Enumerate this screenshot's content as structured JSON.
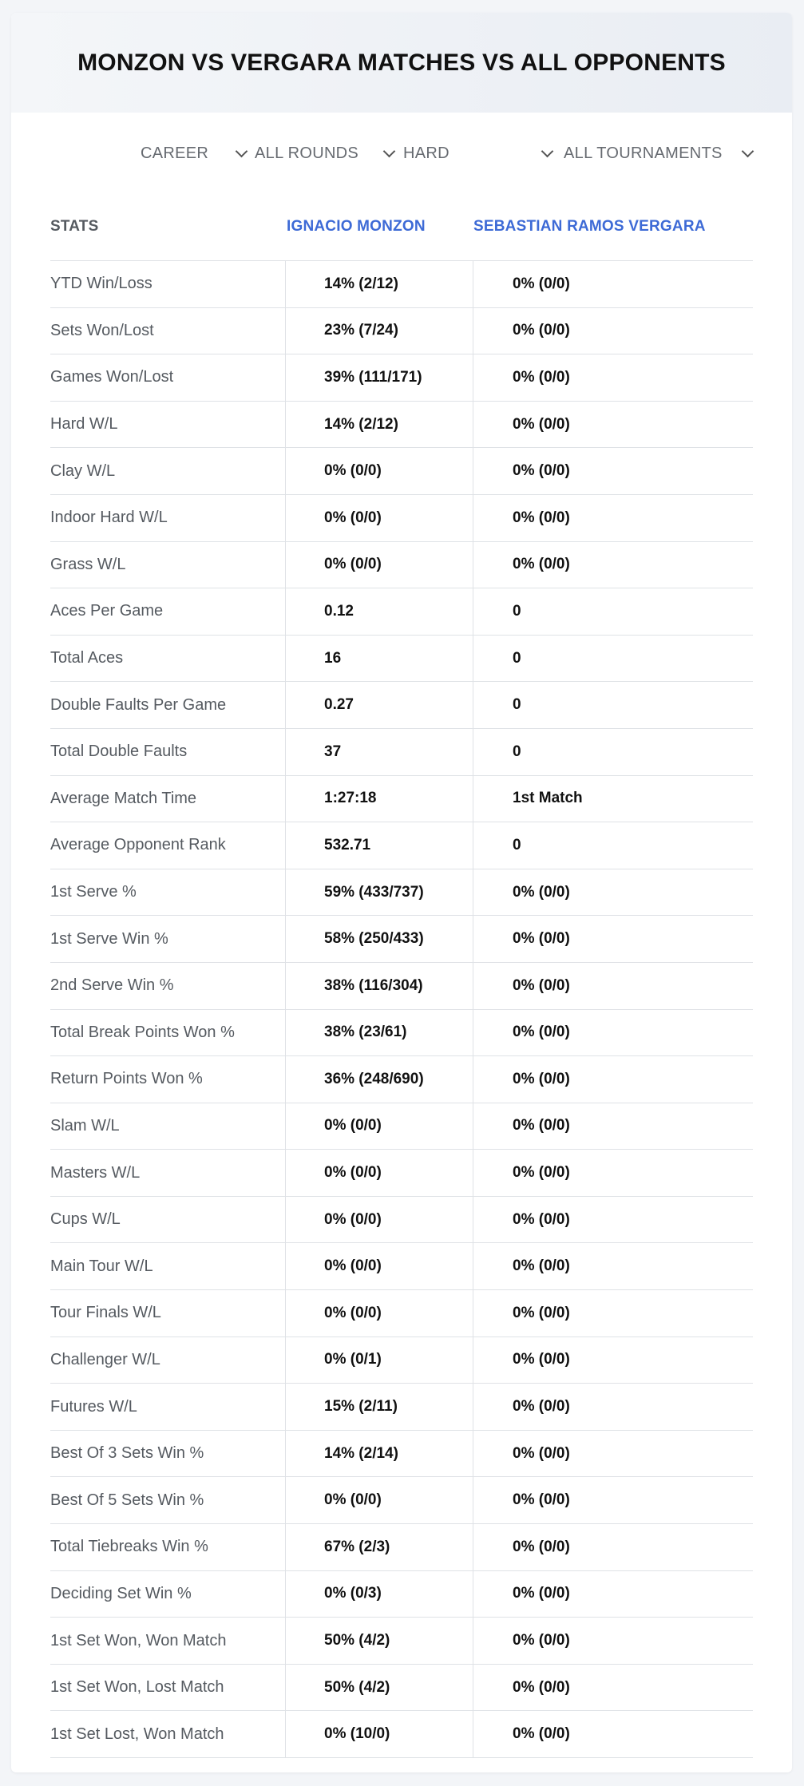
{
  "header": {
    "title": "MONZON VS VERGARA MATCHES VS ALL OPPONENTS"
  },
  "filters": {
    "period": "CAREER",
    "rounds": "ALL ROUNDS",
    "surface": "HARD",
    "tournaments": "ALL TOURNAMENTS"
  },
  "table": {
    "columns": {
      "stats": "STATS",
      "player1": "IGNACIO MONZON",
      "player2": "SEBASTIAN RAMOS VERGARA"
    },
    "rows": [
      {
        "label": "YTD Win/Loss",
        "p1": "14% (2/12)",
        "p2": "0% (0/0)"
      },
      {
        "label": "Sets Won/Lost",
        "p1": "23% (7/24)",
        "p2": "0% (0/0)"
      },
      {
        "label": "Games Won/Lost",
        "p1": "39% (111/171)",
        "p2": "0% (0/0)"
      },
      {
        "label": "Hard W/L",
        "p1": "14% (2/12)",
        "p2": "0% (0/0)"
      },
      {
        "label": "Clay W/L",
        "p1": "0% (0/0)",
        "p2": "0% (0/0)"
      },
      {
        "label": "Indoor Hard W/L",
        "p1": "0% (0/0)",
        "p2": "0% (0/0)"
      },
      {
        "label": "Grass W/L",
        "p1": "0% (0/0)",
        "p2": "0% (0/0)"
      },
      {
        "label": "Aces Per Game",
        "p1": "0.12",
        "p2": "0"
      },
      {
        "label": "Total Aces",
        "p1": "16",
        "p2": "0"
      },
      {
        "label": "Double Faults Per Game",
        "p1": "0.27",
        "p2": "0"
      },
      {
        "label": "Total Double Faults",
        "p1": "37",
        "p2": "0"
      },
      {
        "label": "Average Match Time",
        "p1": "1:27:18",
        "p2": "1st Match"
      },
      {
        "label": "Average Opponent Rank",
        "p1": "532.71",
        "p2": "0"
      },
      {
        "label": "1st Serve %",
        "p1": "59% (433/737)",
        "p2": "0% (0/0)"
      },
      {
        "label": "1st Serve Win %",
        "p1": "58% (250/433)",
        "p2": "0% (0/0)"
      },
      {
        "label": "2nd Serve Win %",
        "p1": "38% (116/304)",
        "p2": "0% (0/0)"
      },
      {
        "label": "Total Break Points Won %",
        "p1": "38% (23/61)",
        "p2": "0% (0/0)"
      },
      {
        "label": "Return Points Won %",
        "p1": "36% (248/690)",
        "p2": "0% (0/0)"
      },
      {
        "label": "Slam W/L",
        "p1": "0% (0/0)",
        "p2": "0% (0/0)"
      },
      {
        "label": "Masters W/L",
        "p1": "0% (0/0)",
        "p2": "0% (0/0)"
      },
      {
        "label": "Cups W/L",
        "p1": "0% (0/0)",
        "p2": "0% (0/0)"
      },
      {
        "label": "Main Tour W/L",
        "p1": "0% (0/0)",
        "p2": "0% (0/0)"
      },
      {
        "label": "Tour Finals W/L",
        "p1": "0% (0/0)",
        "p2": "0% (0/0)"
      },
      {
        "label": "Challenger W/L",
        "p1": "0% (0/1)",
        "p2": "0% (0/0)"
      },
      {
        "label": "Futures W/L",
        "p1": "15% (2/11)",
        "p2": "0% (0/0)"
      },
      {
        "label": "Best Of 3 Sets Win %",
        "p1": "14% (2/14)",
        "p2": "0% (0/0)"
      },
      {
        "label": "Best Of 5 Sets Win %",
        "p1": "0% (0/0)",
        "p2": "0% (0/0)"
      },
      {
        "label": "Total Tiebreaks Win %",
        "p1": "67% (2/3)",
        "p2": "0% (0/0)"
      },
      {
        "label": "Deciding Set Win %",
        "p1": "0% (0/3)",
        "p2": "0% (0/0)"
      },
      {
        "label": "1st Set Won, Won Match",
        "p1": "50% (4/2)",
        "p2": "0% (0/0)"
      },
      {
        "label": "1st Set Won, Lost Match",
        "p1": "50% (4/2)",
        "p2": "0% (0/0)"
      },
      {
        "label": "1st Set Lost, Won Match",
        "p1": "0% (10/0)",
        "p2": "0% (0/0)"
      }
    ]
  }
}
